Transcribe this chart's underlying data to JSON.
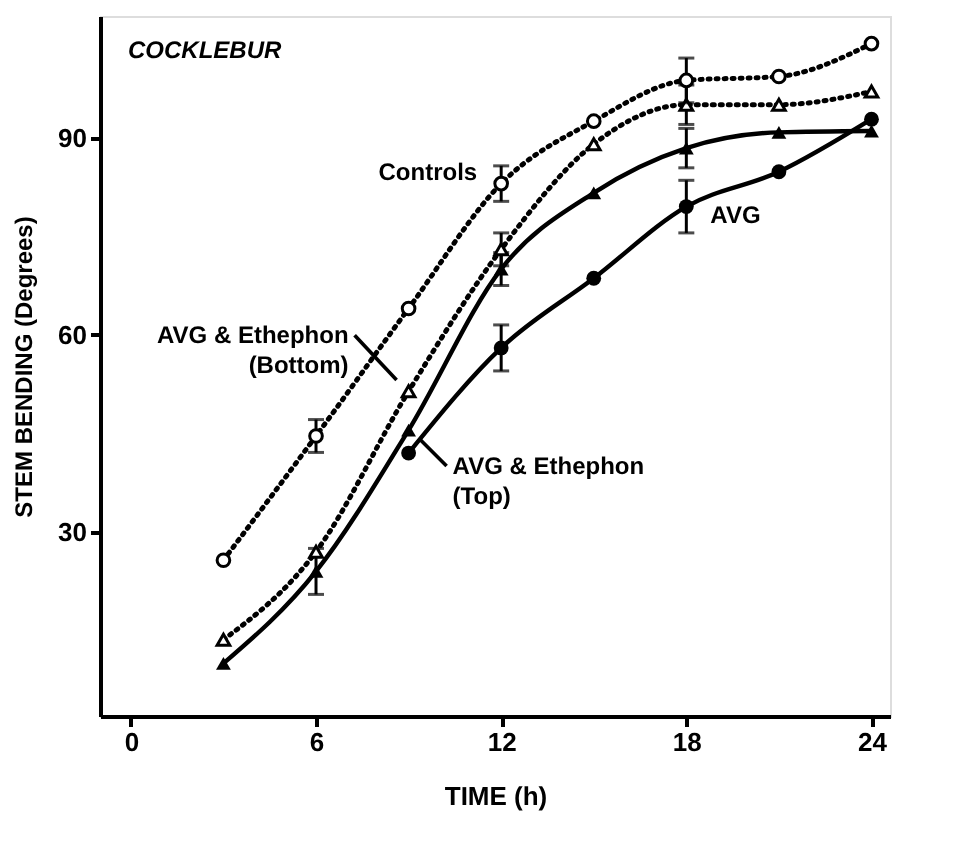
{
  "chart_data": {
    "type": "line",
    "title": "COCKLEBUR",
    "xlabel": "TIME (h)",
    "ylabel": "STEM BENDING (Degrees)",
    "xlim": [
      -1,
      24.6
    ],
    "ylim": [
      2,
      108.5
    ],
    "xticks": [
      0,
      6,
      12,
      18,
      24
    ],
    "yticks": [
      30,
      60,
      90
    ],
    "grid": false,
    "series": [
      {
        "name": "Controls",
        "color": "#000000",
        "marker": "circle",
        "line_style": "dotted",
        "x": [
          3,
          6,
          9,
          12,
          15,
          18,
          21,
          24
        ],
        "values": [
          25.7,
          44.6,
          64,
          83,
          92.5,
          98.7,
          99.3,
          104.3
        ],
        "errors": [
          null,
          2.5,
          null,
          2.7,
          null,
          3.4,
          null,
          null
        ]
      },
      {
        "name": "AVG & Ethephon\n(Bottom)",
        "color": "#000000",
        "marker": "triangle",
        "line_style": "dotted",
        "x": [
          3,
          6,
          9,
          12,
          15,
          18,
          21,
          24
        ],
        "values": [
          13.6,
          27,
          51.4,
          73,
          89,
          95,
          95,
          97
        ],
        "errors": [
          null,
          null,
          null,
          2.5,
          null,
          3,
          null,
          null
        ]
      },
      {
        "name": "AVG & Ethephon\n(Top)",
        "color": "#000000",
        "marker": "triangle",
        "line_style": "solid",
        "x": [
          3,
          6,
          9,
          12,
          15,
          18,
          21,
          24
        ],
        "values": [
          10,
          24,
          45.5,
          70,
          81.6,
          88.4,
          90.8,
          91
        ],
        "errors": [
          null,
          3.5,
          null,
          2.5,
          null,
          3,
          null,
          null
        ]
      },
      {
        "name": "AVG",
        "color": "#000000",
        "marker": "circle",
        "line_style": "solid",
        "x": [
          9,
          12,
          15,
          18,
          21,
          24
        ],
        "values": [
          42,
          58,
          68.6,
          79.5,
          84.8,
          92.8
        ],
        "errors": [
          null,
          3.5,
          null,
          4,
          null,
          null
        ]
      }
    ]
  }
}
